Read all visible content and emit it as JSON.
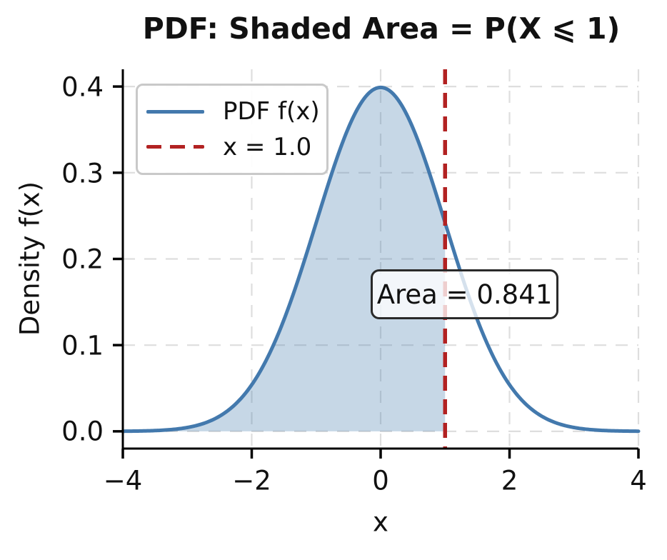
{
  "chart_data": {
    "type": "line",
    "title": "PDF: Shaded Area = P(X ⩽ 1)",
    "xlabel": "x",
    "ylabel": "Density f(x)",
    "xlim": [
      -4,
      4
    ],
    "ylim": [
      -0.02,
      0.42
    ],
    "xticks": [
      -4,
      -2,
      0,
      2,
      4
    ],
    "xtick_labels": [
      "−4",
      "−2",
      "0",
      "2",
      "4"
    ],
    "yticks": [
      0.0,
      0.1,
      0.2,
      0.3,
      0.4
    ],
    "ytick_labels": [
      "0.0",
      "0.1",
      "0.2",
      "0.3",
      "0.4"
    ],
    "grid": true,
    "grid_style": "dashed",
    "legend_position": "upper-left",
    "distribution": {
      "name": "standard-normal",
      "mean": 0,
      "std": 1
    },
    "series": [
      {
        "name": "PDF f(x)",
        "style": "solid",
        "x": [
          -4,
          -3.5,
          -3,
          -2.5,
          -2,
          -1.5,
          -1,
          -0.5,
          0,
          0.5,
          1,
          1.5,
          2,
          2.5,
          3,
          3.5,
          4
        ],
        "y": [
          0.0001,
          0.0009,
          0.0044,
          0.0175,
          0.054,
          0.1295,
          0.242,
          0.3521,
          0.3989,
          0.3521,
          0.242,
          0.1295,
          0.054,
          0.0175,
          0.0044,
          0.0009,
          0.0001
        ]
      },
      {
        "name": "x = 1.0",
        "style": "dashed",
        "kind": "vline",
        "x_value": 1.0
      }
    ],
    "shade": {
      "from": -4,
      "to": 1.0,
      "area": 0.841
    },
    "vline": {
      "x": 1.0,
      "label": "x = 1.0"
    },
    "annotation": {
      "text": "Area = 0.841"
    },
    "legend": {
      "items": [
        {
          "label": "PDF f(x)"
        },
        {
          "label": "x = 1.0"
        }
      ]
    },
    "colors": {
      "curve": "#4379ad",
      "fill": "#4379ad",
      "fill_opacity": 0.3,
      "vline": "#b22222",
      "grid": "#dedede",
      "spine": "#000000",
      "text": "#111111",
      "legend_border": "#c9c9c9",
      "annotation_border": "#2a2a2a"
    }
  }
}
